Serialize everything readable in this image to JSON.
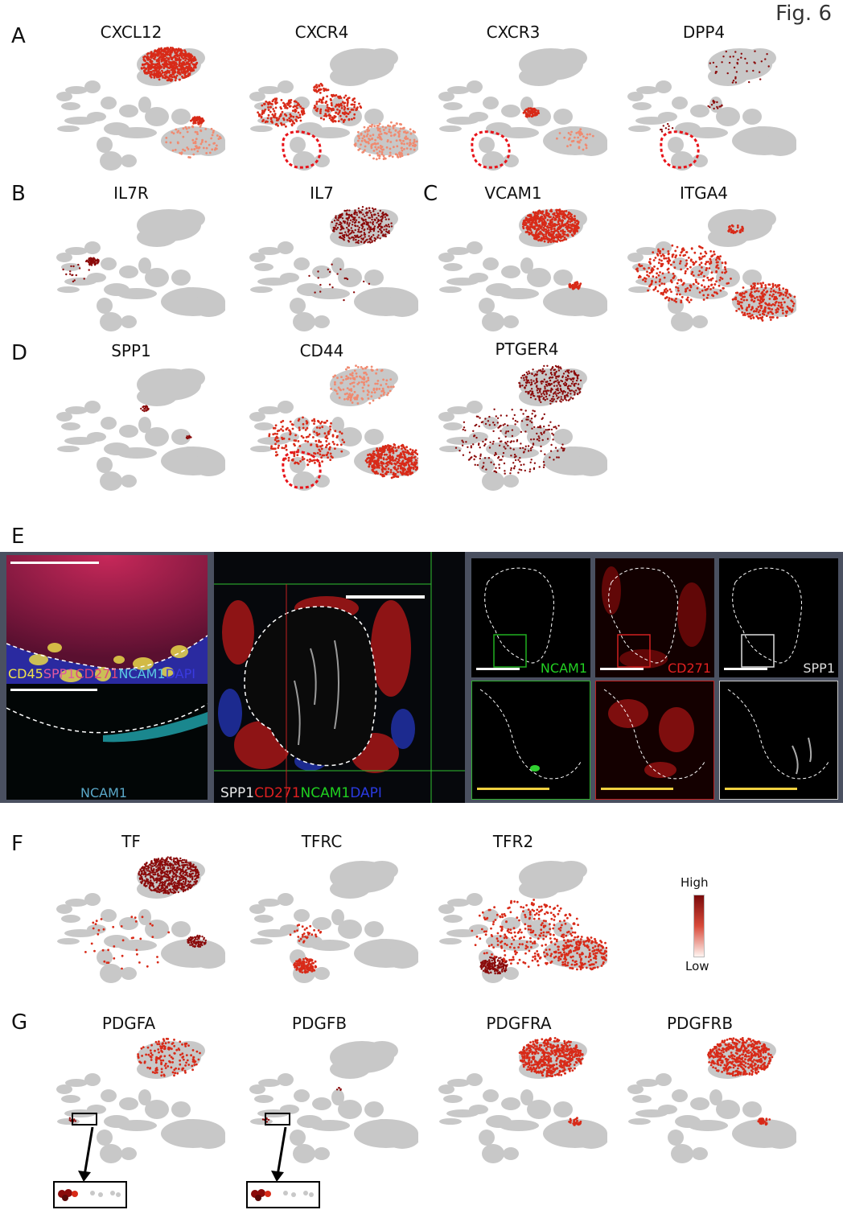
{
  "figure_label": "Fig. 6",
  "panels": {
    "A": {
      "letter": "A",
      "genes": [
        "CXCL12",
        "CXCR4",
        "CXCR3",
        "DPP4"
      ]
    },
    "B": {
      "letter": "B",
      "genes": [
        "IL7R",
        "IL7"
      ]
    },
    "C": {
      "letter": "C",
      "genes": [
        "VCAM1",
        "ITGA4"
      ]
    },
    "D": {
      "letter": "D",
      "genes": [
        "SPP1",
        "CD44",
        "PTGER4"
      ]
    },
    "E": {
      "letter": "E",
      "left_top_channels": [
        {
          "text": "CD45",
          "color": "#f0e24a"
        },
        {
          "text": "SPP1",
          "color": "#e05aa0"
        },
        {
          "text": "CD271",
          "color": "#e04a7a"
        },
        {
          "text": "NCAM1",
          "color": "#5ac8e0"
        },
        {
          "text": "DAPI",
          "color": "#3a3ae0"
        }
      ],
      "left_bottom_label": "NCAM1",
      "middle_channels": [
        {
          "text": "SPP1",
          "color": "#e8e8e8"
        },
        {
          "text": "CD271",
          "color": "#e02020"
        },
        {
          "text": "NCAM1",
          "color": "#20d020"
        },
        {
          "text": "DAPI",
          "color": "#2a3ae0"
        }
      ],
      "right_labels": [
        {
          "text": "NCAM1",
          "color": "#22d022"
        },
        {
          "text": "CD271",
          "color": "#e02020"
        },
        {
          "text": "SPP1",
          "color": "#dddddd"
        }
      ]
    },
    "F": {
      "letter": "F",
      "genes": [
        "TF",
        "TFRC",
        "TFR2"
      ]
    },
    "G": {
      "letter": "G",
      "genes": [
        "PDGFA",
        "PDGFB",
        "PDGFRA",
        "PDGFRB"
      ]
    }
  },
  "legend": {
    "high": "High",
    "low": "Low",
    "colors": [
      "#7a0a0a",
      "#fff4f0"
    ]
  },
  "colors": {
    "grey": "#c8c8c8",
    "red": "#d62a1a",
    "dark_red": "#8c0a0a",
    "dashed_outline": "#e8141a"
  }
}
